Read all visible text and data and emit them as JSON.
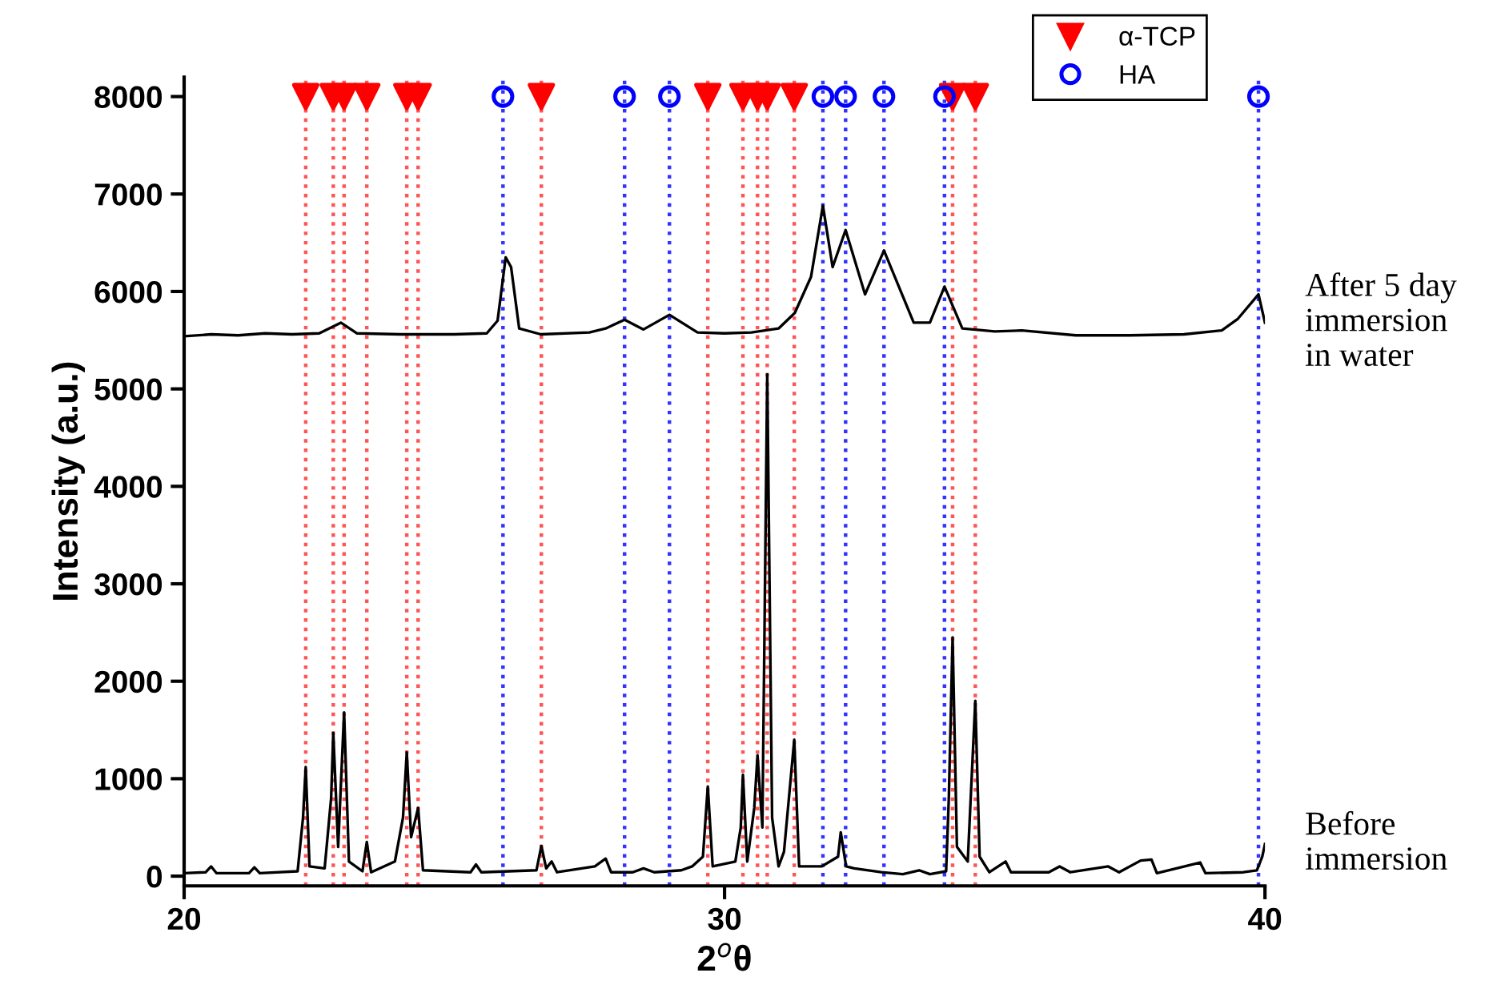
{
  "chart_data": {
    "type": "line",
    "xlabel": "2$^{o}$θ",
    "ylabel": "Intensity (a.u.)",
    "xlim": [
      20,
      40
    ],
    "xticks": [
      20,
      30,
      40
    ],
    "ylim": [
      -100,
      8200
    ],
    "yticks": [
      0,
      1000,
      2000,
      3000,
      4000,
      5000,
      6000,
      7000,
      8000
    ],
    "grid": false,
    "legend": "top right",
    "series": [
      {
        "name": "After 5 day\nimmersion\nin water",
        "color": "#000000",
        "x": [
          20.0,
          20.5,
          21.0,
          21.5,
          22.0,
          22.5,
          22.9,
          23.2,
          24.0,
          25.0,
          25.6,
          25.8,
          25.95,
          26.05,
          26.2,
          26.6,
          27.5,
          27.8,
          28.15,
          28.5,
          28.98,
          29.5,
          30.0,
          30.5,
          31.0,
          31.3,
          31.6,
          31.82,
          32.0,
          32.24,
          32.6,
          32.95,
          33.5,
          33.8,
          34.07,
          34.4,
          35.0,
          35.5,
          36.5,
          37.5,
          38.5,
          39.2,
          39.5,
          39.88,
          40.0
        ],
        "values": [
          5540,
          5560,
          5550,
          5570,
          5560,
          5570,
          5680,
          5570,
          5560,
          5560,
          5570,
          5700,
          6350,
          6250,
          5620,
          5560,
          5580,
          5620,
          5710,
          5610,
          5760,
          5580,
          5570,
          5580,
          5620,
          5780,
          6150,
          6880,
          6250,
          6630,
          5970,
          6420,
          5680,
          5680,
          6050,
          5620,
          5590,
          5600,
          5550,
          5550,
          5560,
          5600,
          5720,
          5970,
          5680
        ]
      },
      {
        "name": "Before\nimmersion",
        "color": "#000000",
        "x": [
          20.0,
          20.4,
          20.5,
          20.6,
          21.2,
          21.3,
          21.4,
          22.1,
          22.2,
          22.25,
          22.32,
          22.6,
          22.72,
          22.76,
          22.85,
          22.96,
          23.05,
          23.3,
          23.38,
          23.46,
          23.9,
          24.05,
          24.12,
          24.2,
          24.33,
          24.42,
          25.3,
          25.4,
          25.5,
          26.52,
          26.61,
          26.7,
          26.8,
          26.9,
          27.6,
          27.8,
          27.9,
          28.3,
          28.5,
          28.7,
          29.2,
          29.4,
          29.6,
          29.69,
          29.78,
          30.2,
          30.3,
          30.34,
          30.42,
          30.55,
          30.61,
          30.7,
          30.79,
          30.88,
          31.0,
          31.1,
          31.29,
          31.38,
          31.8,
          32.1,
          32.15,
          32.25,
          32.4,
          32.9,
          33.3,
          33.6,
          33.8,
          34.1,
          34.15,
          34.22,
          34.3,
          34.5,
          34.64,
          34.72,
          34.9,
          35.2,
          35.3,
          36.0,
          36.2,
          36.4,
          37.1,
          37.3,
          37.7,
          37.9,
          38.0,
          38.8,
          38.9,
          39.6,
          39.85,
          39.95,
          40.0
        ],
        "values": [
          30,
          40,
          100,
          30,
          30,
          90,
          30,
          50,
          600,
          1120,
          100,
          80,
          800,
          1470,
          300,
          1680,
          150,
          50,
          350,
          40,
          150,
          600,
          1270,
          400,
          700,
          60,
          40,
          120,
          40,
          60,
          310,
          80,
          150,
          40,
          100,
          180,
          40,
          40,
          80,
          40,
          60,
          100,
          200,
          920,
          100,
          150,
          500,
          1040,
          150,
          700,
          1240,
          500,
          5150,
          600,
          100,
          250,
          1400,
          100,
          100,
          200,
          450,
          100,
          80,
          40,
          20,
          60,
          20,
          50,
          800,
          2450,
          300,
          150,
          1800,
          200,
          40,
          150,
          40,
          40,
          100,
          40,
          100,
          40,
          160,
          170,
          30,
          140,
          30,
          40,
          60,
          200,
          330
        ]
      },
      {
        "name": "α-TCP",
        "type": "scatter",
        "color": "#ff0000",
        "marker": "triangle",
        "x": [
          22.25,
          22.76,
          22.96,
          23.38,
          24.12,
          24.33,
          26.61,
          29.69,
          30.34,
          30.61,
          30.79,
          31.29,
          34.22,
          34.64
        ],
        "values": [
          8000,
          8000,
          8000,
          8000,
          8000,
          8000,
          8000,
          8000,
          8000,
          8000,
          8000,
          8000,
          8000,
          8000
        ]
      },
      {
        "name": "HA",
        "type": "scatter",
        "color": "#0000ff",
        "marker": "circle",
        "x": [
          25.9,
          28.15,
          28.98,
          31.82,
          32.24,
          32.95,
          34.07,
          39.88
        ],
        "values": [
          8000,
          8000,
          8000,
          8000,
          8000,
          8000,
          8000,
          8000
        ]
      }
    ],
    "ref_lines": [
      {
        "axis": "x",
        "value": 22.25,
        "color": "#ff5555",
        "line_style": "dotted"
      },
      {
        "axis": "x",
        "value": 22.76,
        "color": "#ff5555",
        "line_style": "dotted"
      },
      {
        "axis": "x",
        "value": 22.96,
        "color": "#ff5555",
        "line_style": "dotted"
      },
      {
        "axis": "x",
        "value": 23.38,
        "color": "#ff5555",
        "line_style": "dotted"
      },
      {
        "axis": "x",
        "value": 24.12,
        "color": "#ff5555",
        "line_style": "dotted"
      },
      {
        "axis": "x",
        "value": 24.33,
        "color": "#ff5555",
        "line_style": "dotted"
      },
      {
        "axis": "x",
        "value": 26.61,
        "color": "#ff5555",
        "line_style": "dotted"
      },
      {
        "axis": "x",
        "value": 29.69,
        "color": "#ff5555",
        "line_style": "dotted"
      },
      {
        "axis": "x",
        "value": 30.34,
        "color": "#ff5555",
        "line_style": "dotted"
      },
      {
        "axis": "x",
        "value": 30.61,
        "color": "#ff5555",
        "line_style": "dotted"
      },
      {
        "axis": "x",
        "value": 30.79,
        "color": "#ff5555",
        "line_style": "dotted"
      },
      {
        "axis": "x",
        "value": 31.29,
        "color": "#ff5555",
        "line_style": "dotted"
      },
      {
        "axis": "x",
        "value": 34.22,
        "color": "#ff5555",
        "line_style": "dotted"
      },
      {
        "axis": "x",
        "value": 34.64,
        "color": "#ff5555",
        "line_style": "dotted"
      },
      {
        "axis": "x",
        "value": 25.9,
        "color": "#3333ff",
        "line_style": "dotted"
      },
      {
        "axis": "x",
        "value": 28.15,
        "color": "#3333ff",
        "line_style": "dotted"
      },
      {
        "axis": "x",
        "value": 28.98,
        "color": "#3333ff",
        "line_style": "dotted"
      },
      {
        "axis": "x",
        "value": 31.82,
        "color": "#3333ff",
        "line_style": "dotted"
      },
      {
        "axis": "x",
        "value": 32.24,
        "color": "#3333ff",
        "line_style": "dotted"
      },
      {
        "axis": "x",
        "value": 32.95,
        "color": "#3333ff",
        "line_style": "dotted"
      },
      {
        "axis": "x",
        "value": 34.07,
        "color": "#3333ff",
        "line_style": "dotted"
      },
      {
        "axis": "x",
        "value": 39.88,
        "color": "#3333ff",
        "line_style": "dotted"
      }
    ]
  }
}
